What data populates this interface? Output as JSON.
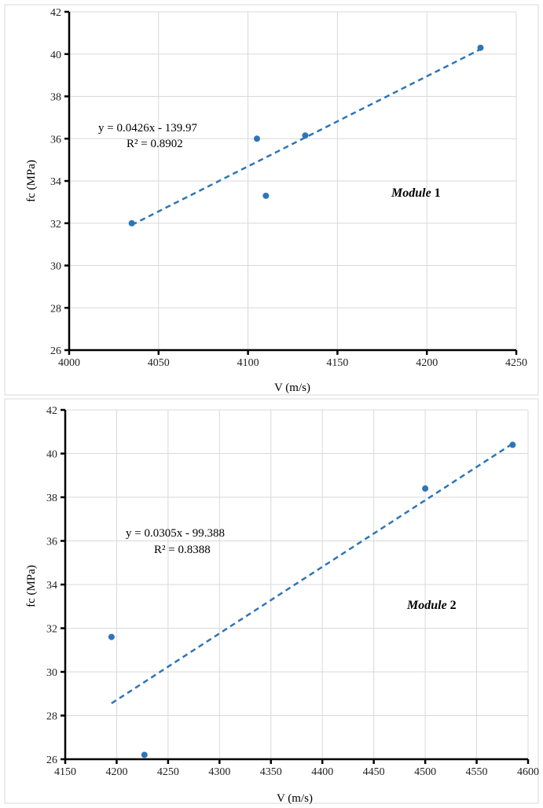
{
  "colors": {
    "marker": "#2e75b6",
    "trendline": "#2e75b6"
  },
  "chart_data": [
    {
      "type": "scatter",
      "xlabel": "V (m/s)",
      "ylabel": "fc (MPa)",
      "xlim": [
        4000,
        4250
      ],
      "ylim": [
        26,
        42
      ],
      "xticks": [
        4000,
        4050,
        4100,
        4150,
        4200,
        4250
      ],
      "yticks": [
        26,
        28,
        30,
        32,
        34,
        36,
        38,
        40,
        42
      ],
      "grid": true,
      "points": [
        {
          "x": 4035,
          "y": 32.0
        },
        {
          "x": 4105,
          "y": 36.0
        },
        {
          "x": 4110,
          "y": 33.3
        },
        {
          "x": 4132,
          "y": 36.15
        },
        {
          "x": 4230,
          "y": 40.3
        }
      ],
      "trendline": {
        "type": "linear",
        "slope": 0.0426,
        "intercept": -139.97,
        "x_range": [
          4035,
          4230
        ]
      },
      "equation": "y = 0.0426x - 139.97",
      "r_squared": "R² = 0.8902",
      "module_word": "Module",
      "module_number": "1"
    },
    {
      "type": "scatter",
      "xlabel": "V (m/s)",
      "ylabel": "fc (MPa)",
      "xlim": [
        4150,
        4600
      ],
      "ylim": [
        26,
        42
      ],
      "xticks": [
        4150,
        4200,
        4250,
        4300,
        4350,
        4400,
        4450,
        4500,
        4550,
        4600
      ],
      "yticks": [
        26,
        28,
        30,
        32,
        34,
        36,
        38,
        40,
        42
      ],
      "grid": true,
      "points": [
        {
          "x": 4195,
          "y": 31.6
        },
        {
          "x": 4227,
          "y": 26.2
        },
        {
          "x": 4500,
          "y": 38.4
        },
        {
          "x": 4585,
          "y": 40.4
        }
      ],
      "trendline": {
        "type": "linear",
        "slope": 0.0305,
        "intercept": -99.388,
        "x_range": [
          4195,
          4585
        ]
      },
      "equation": "y = 0.0305x - 99.388",
      "r_squared": "R² = 0.8388",
      "module_word": "Module",
      "module_number": "2"
    }
  ]
}
